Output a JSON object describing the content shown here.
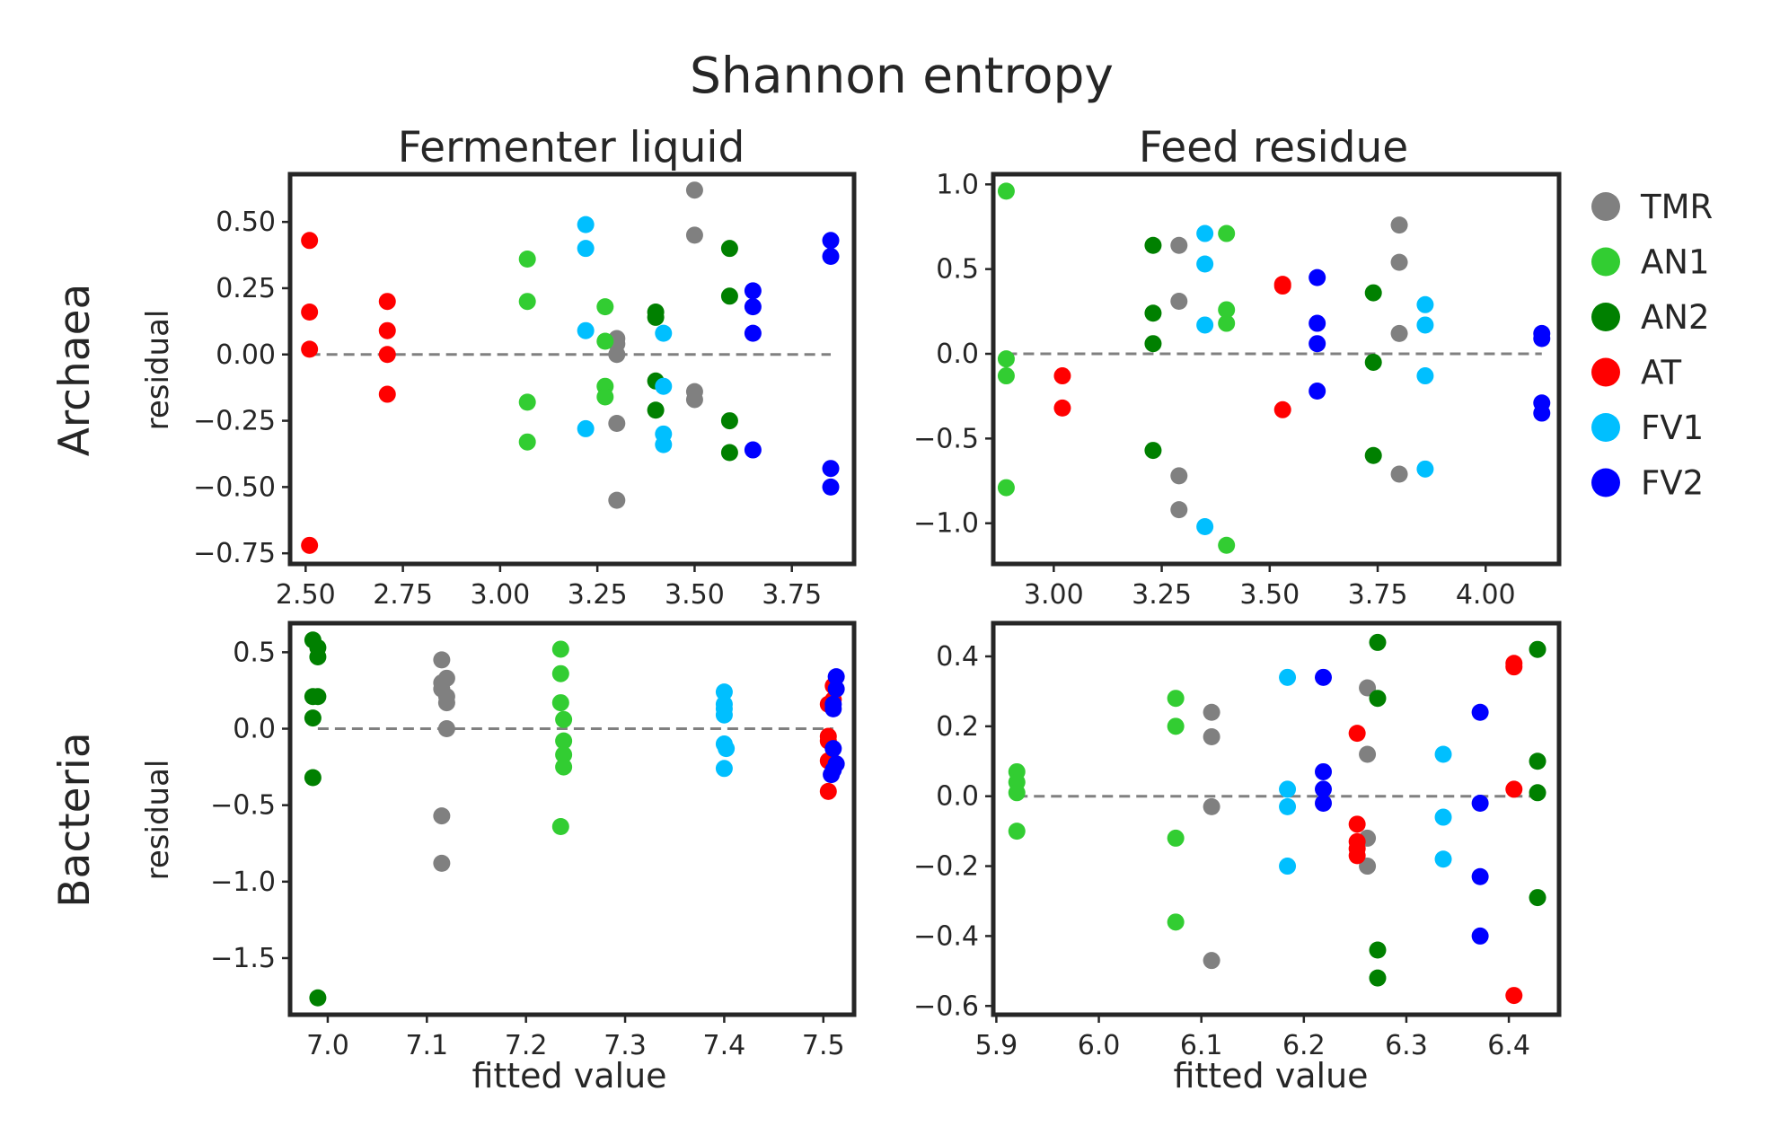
{
  "figure_title": "Shannon entropy",
  "column_titles": [
    "Fermenter liquid",
    "Feed residue"
  ],
  "row_titles": [
    "Archaea",
    "Bacteria"
  ],
  "ylabel": "residual",
  "xlabel": "fitted value",
  "legend": {
    "placement": "right",
    "items": [
      {
        "label": "TMR",
        "color": "#808080"
      },
      {
        "label": "AN1",
        "color": "#32CD32"
      },
      {
        "label": "AN2",
        "color": "#008000"
      },
      {
        "label": "AT",
        "color": "#FF0000"
      },
      {
        "label": "FV1",
        "color": "#00BFFF"
      },
      {
        "label": "FV2",
        "color": "#0000FF"
      }
    ]
  },
  "chart_data": [
    {
      "type": "scatter",
      "row": "Archaea",
      "column": "Fermenter liquid",
      "xlim": [
        2.46,
        3.91
      ],
      "ylim": [
        -0.79,
        0.68
      ],
      "xticks": [
        "2.50",
        "2.75",
        "3.00",
        "3.25",
        "3.50",
        "3.75"
      ],
      "yticks": [
        "0.50",
        "0.25",
        "0.00",
        "−0.25",
        "−0.50",
        "−0.75"
      ],
      "reference_line": {
        "y": 0,
        "x": [
          2.51,
          3.85
        ]
      },
      "series": [
        {
          "name": "TMR",
          "color": "#808080",
          "points": [
            [
              3.5,
              0.62
            ],
            [
              3.5,
              0.45
            ],
            [
              3.3,
              0.06
            ],
            [
              3.3,
              0.04
            ],
            [
              3.3,
              0.0
            ],
            [
              3.3,
              -0.26
            ],
            [
              3.3,
              -0.55
            ],
            [
              3.5,
              -0.14
            ],
            [
              3.5,
              -0.17
            ]
          ]
        },
        {
          "name": "AN1",
          "color": "#32CD32",
          "points": [
            [
              3.07,
              0.36
            ],
            [
              3.07,
              0.2
            ],
            [
              3.07,
              -0.18
            ],
            [
              3.07,
              -0.33
            ],
            [
              3.27,
              0.18
            ],
            [
              3.27,
              0.05
            ],
            [
              3.27,
              -0.12
            ],
            [
              3.27,
              -0.16
            ]
          ]
        },
        {
          "name": "AN2",
          "color": "#008000",
          "points": [
            [
              3.4,
              0.16
            ],
            [
              3.4,
              0.14
            ],
            [
              3.4,
              -0.1
            ],
            [
              3.4,
              -0.21
            ],
            [
              3.59,
              0.4
            ],
            [
              3.59,
              0.22
            ],
            [
              3.59,
              -0.25
            ],
            [
              3.59,
              -0.37
            ]
          ]
        },
        {
          "name": "AT",
          "color": "#FF0000",
          "points": [
            [
              2.51,
              0.43
            ],
            [
              2.51,
              0.16
            ],
            [
              2.51,
              0.02
            ],
            [
              2.51,
              -0.72
            ],
            [
              2.71,
              0.2
            ],
            [
              2.71,
              0.09
            ],
            [
              2.71,
              0.0
            ],
            [
              2.71,
              -0.15
            ]
          ]
        },
        {
          "name": "FV1",
          "color": "#00BFFF",
          "points": [
            [
              3.22,
              0.49
            ],
            [
              3.22,
              0.4
            ],
            [
              3.22,
              0.09
            ],
            [
              3.22,
              -0.28
            ],
            [
              3.42,
              0.08
            ],
            [
              3.42,
              -0.12
            ],
            [
              3.42,
              -0.3
            ],
            [
              3.42,
              -0.34
            ]
          ]
        },
        {
          "name": "FV2",
          "color": "#0000FF",
          "points": [
            [
              3.65,
              0.24
            ],
            [
              3.65,
              0.18
            ],
            [
              3.65,
              0.08
            ],
            [
              3.65,
              -0.36
            ],
            [
              3.85,
              0.43
            ],
            [
              3.85,
              0.37
            ],
            [
              3.85,
              -0.43
            ],
            [
              3.85,
              -0.5
            ]
          ]
        }
      ]
    },
    {
      "type": "scatter",
      "row": "Archaea",
      "column": "Feed residue",
      "xlim": [
        2.86,
        4.17
      ],
      "ylim": [
        -1.24,
        1.06
      ],
      "xticks": [
        "3.00",
        "3.25",
        "3.50",
        "3.75",
        "4.00"
      ],
      "yticks": [
        "1.0",
        "0.5",
        "0.0",
        "−0.5",
        "−1.0"
      ],
      "reference_line": {
        "y": 0,
        "x": [
          2.89,
          4.13
        ]
      },
      "series": [
        {
          "name": "TMR",
          "color": "#808080",
          "points": [
            [
              3.29,
              0.64
            ],
            [
              3.29,
              0.31
            ],
            [
              3.29,
              -0.72
            ],
            [
              3.29,
              -0.92
            ],
            [
              3.8,
              0.76
            ],
            [
              3.8,
              0.54
            ],
            [
              3.8,
              0.12
            ],
            [
              3.8,
              -0.71
            ]
          ]
        },
        {
          "name": "AN1",
          "color": "#32CD32",
          "points": [
            [
              2.89,
              0.96
            ],
            [
              2.89,
              -0.03
            ],
            [
              2.89,
              -0.13
            ],
            [
              2.89,
              -0.79
            ],
            [
              3.4,
              0.71
            ],
            [
              3.4,
              0.26
            ],
            [
              3.4,
              0.18
            ],
            [
              3.4,
              -1.13
            ]
          ]
        },
        {
          "name": "AN2",
          "color": "#008000",
          "points": [
            [
              3.23,
              0.64
            ],
            [
              3.23,
              0.24
            ],
            [
              3.23,
              0.06
            ],
            [
              3.23,
              -0.57
            ],
            [
              3.74,
              0.36
            ],
            [
              3.74,
              -0.05
            ],
            [
              3.74,
              -0.6
            ]
          ]
        },
        {
          "name": "AT",
          "color": "#FF0000",
          "points": [
            [
              3.02,
              -0.13
            ],
            [
              3.02,
              -0.32
            ],
            [
              3.53,
              0.41
            ],
            [
              3.53,
              0.4
            ],
            [
              3.53,
              -0.33
            ]
          ]
        },
        {
          "name": "FV1",
          "color": "#00BFFF",
          "points": [
            [
              3.35,
              0.71
            ],
            [
              3.35,
              0.53
            ],
            [
              3.35,
              0.17
            ],
            [
              3.35,
              -1.02
            ],
            [
              3.86,
              0.29
            ],
            [
              3.86,
              0.17
            ],
            [
              3.86,
              -0.13
            ],
            [
              3.86,
              -0.68
            ]
          ]
        },
        {
          "name": "FV2",
          "color": "#0000FF",
          "points": [
            [
              3.61,
              0.45
            ],
            [
              3.61,
              0.18
            ],
            [
              3.61,
              0.06
            ],
            [
              3.61,
              -0.22
            ],
            [
              4.13,
              0.12
            ],
            [
              4.13,
              0.09
            ],
            [
              4.13,
              -0.29
            ],
            [
              4.13,
              -0.35
            ]
          ]
        }
      ]
    },
    {
      "type": "scatter",
      "row": "Bacteria",
      "column": "Fermenter liquid",
      "xlim": [
        6.962,
        7.531
      ],
      "ylim": [
        -1.87,
        0.69
      ],
      "xticks": [
        "7.0",
        "7.1",
        "7.2",
        "7.3",
        "7.4",
        "7.5"
      ],
      "yticks": [
        "0.5",
        "0.0",
        "−0.5",
        "−1.0",
        "−1.5"
      ],
      "reference_line": {
        "y": 0,
        "x": [
          6.99,
          7.51
        ]
      },
      "series": [
        {
          "name": "TMR",
          "color": "#808080",
          "points": [
            [
              7.115,
              0.45
            ],
            [
              7.115,
              0.3
            ],
            [
              7.12,
              0.33
            ],
            [
              7.115,
              0.26
            ],
            [
              7.12,
              0.21
            ],
            [
              7.12,
              0.17
            ],
            [
              7.12,
              0.0
            ],
            [
              7.115,
              -0.57
            ],
            [
              7.115,
              -0.88
            ]
          ]
        },
        {
          "name": "AN1",
          "color": "#32CD32",
          "points": [
            [
              7.235,
              0.52
            ],
            [
              7.235,
              0.36
            ],
            [
              7.235,
              0.17
            ],
            [
              7.238,
              0.06
            ],
            [
              7.238,
              -0.08
            ],
            [
              7.238,
              -0.17
            ],
            [
              7.238,
              -0.25
            ],
            [
              7.235,
              -0.64
            ]
          ]
        },
        {
          "name": "AN2",
          "color": "#008000",
          "points": [
            [
              6.985,
              0.58
            ],
            [
              6.99,
              0.53
            ],
            [
              6.99,
              0.47
            ],
            [
              6.985,
              0.21
            ],
            [
              6.99,
              0.21
            ],
            [
              6.985,
              0.07
            ],
            [
              6.985,
              -0.32
            ],
            [
              6.99,
              -1.76
            ]
          ]
        },
        {
          "name": "AT",
          "color": "#FF0000",
          "points": [
            [
              7.51,
              0.28
            ],
            [
              7.51,
              0.19
            ],
            [
              7.505,
              0.16
            ],
            [
              7.505,
              -0.05
            ],
            [
              7.505,
              -0.08
            ],
            [
              7.505,
              -0.21
            ],
            [
              7.51,
              -0.22
            ],
            [
              7.505,
              -0.41
            ]
          ]
        },
        {
          "name": "FV1",
          "color": "#00BFFF",
          "points": [
            [
              7.4,
              0.24
            ],
            [
              7.4,
              0.16
            ],
            [
              7.4,
              0.13
            ],
            [
              7.4,
              0.09
            ],
            [
              7.4,
              -0.1
            ],
            [
              7.402,
              -0.13
            ],
            [
              7.4,
              -0.26
            ]
          ]
        },
        {
          "name": "FV2",
          "color": "#0000FF",
          "points": [
            [
              7.513,
              0.34
            ],
            [
              7.513,
              0.26
            ],
            [
              7.51,
              0.16
            ],
            [
              7.51,
              0.13
            ],
            [
              7.51,
              -0.13
            ],
            [
              7.513,
              -0.23
            ],
            [
              7.51,
              -0.27
            ],
            [
              7.508,
              -0.3
            ]
          ]
        }
      ]
    },
    {
      "type": "scatter",
      "row": "Bacteria",
      "column": "Feed residue",
      "xlim": [
        5.897,
        6.449
      ],
      "ylim": [
        -0.625,
        0.495
      ],
      "xticks": [
        "5.9",
        "6.0",
        "6.1",
        "6.2",
        "6.3",
        "6.4"
      ],
      "yticks": [
        "0.4",
        "0.2",
        "0.0",
        "−0.2",
        "−0.4",
        "−0.6"
      ],
      "reference_line": {
        "y": 0,
        "x": [
          5.92,
          6.43
        ]
      },
      "series": [
        {
          "name": "TMR",
          "color": "#808080",
          "points": [
            [
              6.11,
              0.24
            ],
            [
              6.11,
              0.17
            ],
            [
              6.11,
              -0.03
            ],
            [
              6.11,
              -0.47
            ],
            [
              6.262,
              0.31
            ],
            [
              6.262,
              0.12
            ],
            [
              6.262,
              -0.12
            ],
            [
              6.262,
              -0.2
            ]
          ]
        },
        {
          "name": "AN1",
          "color": "#32CD32",
          "points": [
            [
              5.92,
              0.07
            ],
            [
              5.92,
              0.04
            ],
            [
              5.92,
              0.01
            ],
            [
              5.92,
              -0.1
            ],
            [
              6.075,
              0.28
            ],
            [
              6.075,
              0.2
            ],
            [
              6.075,
              -0.12
            ],
            [
              6.075,
              -0.36
            ]
          ]
        },
        {
          "name": "AN2",
          "color": "#008000",
          "points": [
            [
              6.272,
              0.44
            ],
            [
              6.272,
              0.28
            ],
            [
              6.272,
              -0.44
            ],
            [
              6.272,
              -0.52
            ],
            [
              6.428,
              0.42
            ],
            [
              6.428,
              0.1
            ],
            [
              6.428,
              0.01
            ],
            [
              6.428,
              -0.29
            ]
          ]
        },
        {
          "name": "AT",
          "color": "#FF0000",
          "points": [
            [
              6.252,
              0.18
            ],
            [
              6.252,
              -0.08
            ],
            [
              6.252,
              -0.13
            ],
            [
              6.252,
              -0.15
            ],
            [
              6.252,
              -0.17
            ],
            [
              6.405,
              0.38
            ],
            [
              6.405,
              0.37
            ],
            [
              6.405,
              0.02
            ],
            [
              6.405,
              -0.57
            ]
          ]
        },
        {
          "name": "FV1",
          "color": "#00BFFF",
          "points": [
            [
              6.184,
              0.34
            ],
            [
              6.184,
              0.02
            ],
            [
              6.184,
              -0.03
            ],
            [
              6.184,
              -0.2
            ],
            [
              6.336,
              0.12
            ],
            [
              6.336,
              -0.06
            ],
            [
              6.336,
              -0.18
            ]
          ]
        },
        {
          "name": "FV2",
          "color": "#0000FF",
          "points": [
            [
              6.219,
              0.34
            ],
            [
              6.219,
              0.07
            ],
            [
              6.219,
              0.02
            ],
            [
              6.219,
              -0.02
            ],
            [
              6.372,
              0.24
            ],
            [
              6.372,
              -0.02
            ],
            [
              6.372,
              -0.23
            ],
            [
              6.372,
              -0.4
            ]
          ]
        }
      ]
    }
  ]
}
